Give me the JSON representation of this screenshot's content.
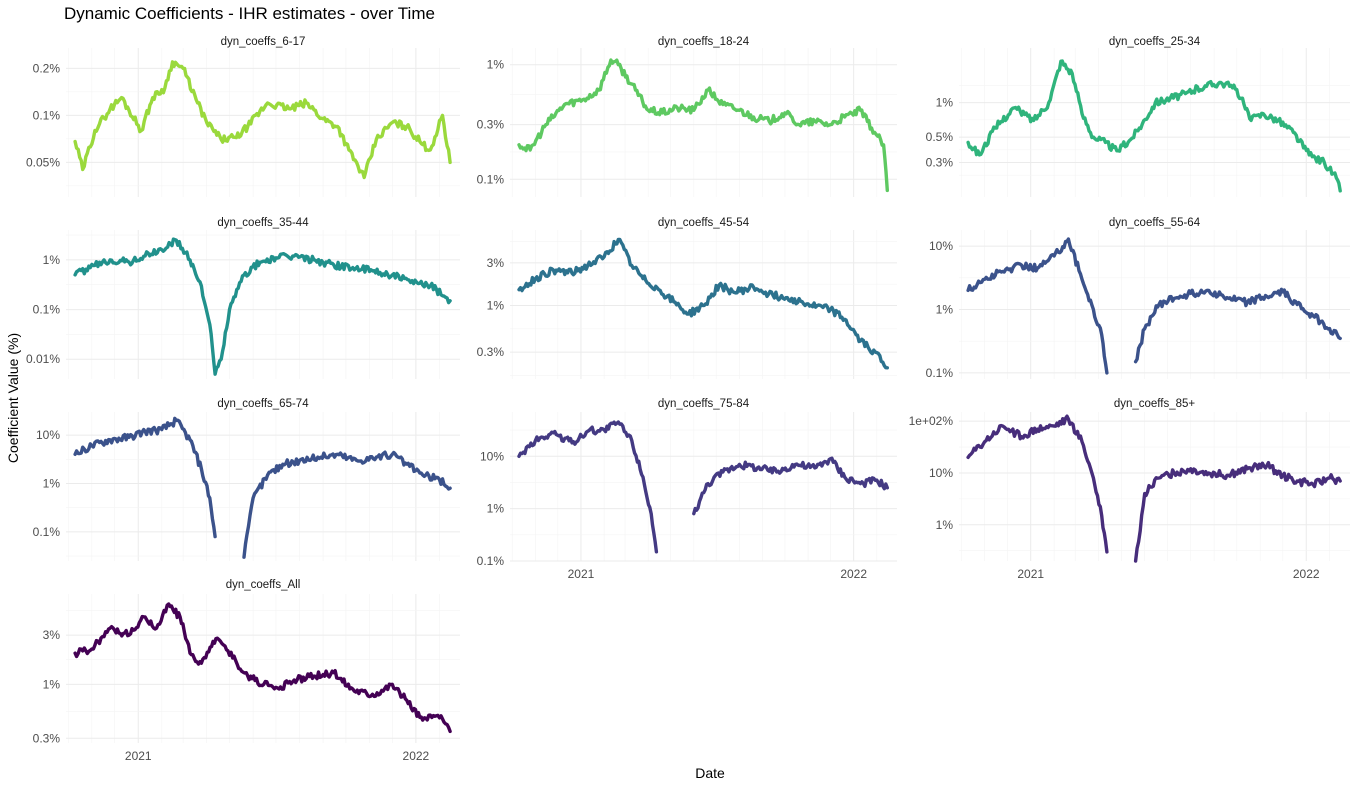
{
  "chart_data": {
    "type": "line",
    "title": "Dynamic Coefficients - IHR estimates - over Time",
    "xlabel": "Date",
    "ylabel": "Coefficient Value (%)",
    "x_ticks": [
      "2021",
      "2022"
    ],
    "y_scale": "log10",
    "grid": true,
    "panels": [
      {
        "name": "dyn_coeffs_6-17",
        "color": "#9ad93c",
        "y_ticks": [
          "0.05%",
          "0.1%",
          "0.2%"
        ],
        "ylim": [
          0.03,
          0.27
        ],
        "x": [
          "2020-10-10",
          "2020-10-20",
          "2020-11-05",
          "2020-11-25",
          "2020-12-10",
          "2021-01-05",
          "2021-01-20",
          "2021-02-05",
          "2021-02-15",
          "2021-03-01",
          "2021-03-20",
          "2021-04-01",
          "2021-04-20",
          "2021-05-10",
          "2021-05-25",
          "2021-06-20",
          "2021-07-20",
          "2021-08-10",
          "2021-09-01",
          "2021-09-20",
          "2021-10-05",
          "2021-10-25",
          "2021-11-10",
          "2021-12-01",
          "2021-12-20",
          "2022-01-10",
          "2022-01-20",
          "2022-02-05",
          "2022-02-15"
        ],
        "values": [
          0.068,
          0.045,
          0.08,
          0.11,
          0.13,
          0.08,
          0.13,
          0.15,
          0.22,
          0.2,
          0.12,
          0.09,
          0.07,
          0.072,
          0.085,
          0.12,
          0.11,
          0.12,
          0.095,
          0.085,
          0.06,
          0.04,
          0.07,
          0.09,
          0.085,
          0.065,
          0.06,
          0.1,
          0.05
        ]
      },
      {
        "name": "dyn_coeffs_18-24",
        "color": "#5ec961",
        "y_ticks": [
          "0.1%",
          "0.3%",
          "1%"
        ],
        "ylim": [
          0.07,
          1.4
        ],
        "x": [
          "2020-10-10",
          "2020-10-25",
          "2020-11-15",
          "2020-12-10",
          "2021-01-05",
          "2021-01-25",
          "2021-02-10",
          "2021-02-20",
          "2021-03-15",
          "2021-04-01",
          "2021-04-20",
          "2021-05-10",
          "2021-06-01",
          "2021-06-20",
          "2021-07-10",
          "2021-08-01",
          "2021-08-20",
          "2021-09-10",
          "2021-10-01",
          "2021-10-20",
          "2021-11-10",
          "2021-12-01",
          "2021-12-20",
          "2022-01-10",
          "2022-01-25",
          "2022-02-10",
          "2022-02-15"
        ],
        "values": [
          0.2,
          0.18,
          0.3,
          0.45,
          0.5,
          0.6,
          1.1,
          1.0,
          0.6,
          0.4,
          0.38,
          0.42,
          0.4,
          0.6,
          0.45,
          0.4,
          0.35,
          0.32,
          0.38,
          0.3,
          0.32,
          0.3,
          0.35,
          0.4,
          0.28,
          0.2,
          0.08
        ]
      },
      {
        "name": "dyn_coeffs_25-34",
        "color": "#2fb47c",
        "y_ticks": [
          "0.3%",
          "0.5%",
          "1%"
        ],
        "ylim": [
          0.15,
          3.0
        ],
        "x": [
          "2020-10-10",
          "2020-10-25",
          "2020-11-15",
          "2020-12-10",
          "2021-01-05",
          "2021-01-25",
          "2021-02-10",
          "2021-02-25",
          "2021-03-10",
          "2021-03-25",
          "2021-04-10",
          "2021-04-25",
          "2021-05-10",
          "2021-05-25",
          "2021-06-15",
          "2021-07-05",
          "2021-07-25",
          "2021-08-20",
          "2021-09-10",
          "2021-10-01",
          "2021-10-20",
          "2021-11-05",
          "2021-11-25",
          "2021-12-15",
          "2022-01-05",
          "2022-01-25",
          "2022-02-10",
          "2022-02-15"
        ],
        "values": [
          0.45,
          0.35,
          0.6,
          0.9,
          0.7,
          1.0,
          2.3,
          1.8,
          0.8,
          0.5,
          0.45,
          0.38,
          0.45,
          0.6,
          1.0,
          1.1,
          1.2,
          1.4,
          1.5,
          1.3,
          0.7,
          0.8,
          0.7,
          0.55,
          0.35,
          0.3,
          0.22,
          0.17
        ]
      },
      {
        "name": "dyn_coeffs_35-44",
        "color": "#21918c",
        "y_ticks": [
          "0.01%",
          "0.1%",
          "1%"
        ],
        "ylim": [
          0.004,
          4.0
        ],
        "x": [
          "2020-10-10",
          "2020-10-30",
          "2020-11-25",
          "2020-12-20",
          "2021-01-10",
          "2021-02-01",
          "2021-02-20",
          "2021-03-10",
          "2021-03-25",
          "2021-04-05",
          "2021-04-12",
          "2021-04-20",
          "2021-05-01",
          "2021-05-20",
          "2021-06-10",
          "2021-07-01",
          "2021-07-25",
          "2021-08-20",
          "2021-09-15",
          "2021-10-10",
          "2021-11-05",
          "2021-12-01",
          "2021-12-25",
          "2022-01-20",
          "2022-02-15"
        ],
        "values": [
          0.5,
          0.7,
          1.0,
          0.9,
          1.2,
          1.6,
          2.5,
          1.0,
          0.3,
          0.05,
          0.005,
          0.01,
          0.1,
          0.5,
          0.9,
          1.1,
          1.2,
          1.0,
          0.8,
          0.7,
          0.6,
          0.5,
          0.35,
          0.3,
          0.15
        ]
      },
      {
        "name": "dyn_coeffs_45-54",
        "color": "#2c728e",
        "y_ticks": [
          "0.3%",
          "1%",
          "3%"
        ],
        "ylim": [
          0.15,
          7.0
        ],
        "x": [
          "2020-10-10",
          "2020-11-01",
          "2020-11-25",
          "2020-12-20",
          "2021-01-10",
          "2021-02-01",
          "2021-02-20",
          "2021-03-10",
          "2021-03-25",
          "2021-04-15",
          "2021-05-05",
          "2021-05-25",
          "2021-06-15",
          "2021-07-05",
          "2021-07-25",
          "2021-08-20",
          "2021-09-15",
          "2021-10-10",
          "2021-11-05",
          "2021-12-01",
          "2021-12-20",
          "2022-01-10",
          "2022-01-30",
          "2022-02-15"
        ],
        "values": [
          1.5,
          2.0,
          2.5,
          2.3,
          2.8,
          3.5,
          5.5,
          2.8,
          2.0,
          1.5,
          1.1,
          0.8,
          1.0,
          1.7,
          1.4,
          1.6,
          1.3,
          1.2,
          1.0,
          0.9,
          0.7,
          0.4,
          0.3,
          0.2
        ]
      },
      {
        "name": "dyn_coeffs_55-64",
        "color": "#3b528b",
        "y_ticks": [
          "0.1%",
          "1%",
          "10%"
        ],
        "ylim": [
          0.08,
          18
        ],
        "x": [
          "2020-10-10",
          "2020-11-01",
          "2020-11-25",
          "2020-12-20",
          "2021-01-10",
          "2021-02-01",
          "2021-02-20",
          "2021-03-10",
          "2021-03-25",
          "2021-04-05",
          "2021-04-12"
        ],
        "values": [
          2.0,
          3.0,
          4.0,
          5.0,
          4.5,
          7.0,
          13,
          3.0,
          1.0,
          0.4,
          0.1
        ],
        "x2": [
          "2021-05-20",
          "2021-06-01",
          "2021-06-20",
          "2021-07-10",
          "2021-08-01",
          "2021-08-25",
          "2021-09-20",
          "2021-10-15",
          "2021-11-10",
          "2021-12-01",
          "2021-12-20",
          "2022-01-10",
          "2022-02-01",
          "2022-02-15"
        ],
        "values2": [
          0.15,
          0.5,
          1.2,
          1.5,
          1.8,
          2.0,
          1.5,
          1.3,
          1.6,
          1.9,
          1.2,
          0.8,
          0.5,
          0.35
        ]
      },
      {
        "name": "dyn_coeffs_65-74",
        "color": "#3b528b",
        "y_ticks": [
          "0.1%",
          "1%",
          "10%"
        ],
        "ylim": [
          0.025,
          30
        ],
        "x": [
          "2020-10-10",
          "2020-11-01",
          "2020-11-25",
          "2020-12-20",
          "2021-01-10",
          "2021-02-01",
          "2021-02-20",
          "2021-03-10",
          "2021-03-25",
          "2021-04-05",
          "2021-04-12"
        ],
        "values": [
          4.0,
          6.0,
          8.0,
          9.0,
          12,
          13,
          20,
          8.0,
          2.0,
          0.5,
          0.08
        ],
        "x2": [
          "2021-05-20",
          "2021-06-01",
          "2021-06-20",
          "2021-07-10",
          "2021-08-01",
          "2021-08-25",
          "2021-09-20",
          "2021-10-15",
          "2021-11-10",
          "2021-12-01",
          "2021-12-20",
          "2022-01-10",
          "2022-02-01",
          "2022-02-15"
        ],
        "values2": [
          0.03,
          0.5,
          1.5,
          2.5,
          3.0,
          3.5,
          4.0,
          3.0,
          3.5,
          4.0,
          2.5,
          1.5,
          1.2,
          0.8
        ]
      },
      {
        "name": "dyn_coeffs_75-84",
        "color": "#443a83",
        "y_ticks": [
          "0.1%",
          "1%",
          "10%"
        ],
        "ylim": [
          0.1,
          70
        ],
        "x": [
          "2020-10-10",
          "2020-11-01",
          "2020-11-25",
          "2020-12-20",
          "2021-01-10",
          "2021-02-01",
          "2021-02-20",
          "2021-03-10",
          "2021-03-25",
          "2021-04-05",
          "2021-04-12"
        ],
        "values": [
          10,
          20,
          28,
          18,
          30,
          32,
          45,
          20,
          4.0,
          0.8,
          0.15
        ],
        "x2": [
          "2021-06-01",
          "2021-06-20",
          "2021-07-10",
          "2021-08-01",
          "2021-08-25",
          "2021-09-20",
          "2021-10-15",
          "2021-11-10",
          "2021-12-01",
          "2021-12-20",
          "2022-01-10",
          "2022-02-01",
          "2022-02-15"
        ],
        "values2": [
          0.8,
          3.0,
          5.0,
          7.0,
          6.0,
          5.0,
          7.0,
          6.0,
          9.0,
          4.0,
          3.0,
          3.5,
          2.5
        ]
      },
      {
        "name": "dyn_coeffs_85+",
        "color": "#472d7b",
        "y_ticks": [
          "1%",
          "10%",
          "1e+02%"
        ],
        "ylim": [
          0.2,
          150
        ],
        "x": [
          "2020-10-10",
          "2020-11-01",
          "2020-11-25",
          "2020-12-20",
          "2021-01-10",
          "2021-02-01",
          "2021-02-20",
          "2021-03-10",
          "2021-03-25",
          "2021-04-05",
          "2021-04-12"
        ],
        "values": [
          20,
          40,
          80,
          50,
          70,
          80,
          110,
          40,
          8.0,
          1.5,
          0.3
        ],
        "x2": [
          "2021-05-20",
          "2021-06-01",
          "2021-06-20",
          "2021-07-10",
          "2021-08-01",
          "2021-08-25",
          "2021-09-20",
          "2021-10-15",
          "2021-11-10",
          "2021-12-01",
          "2021-12-20",
          "2022-01-10",
          "2022-02-01",
          "2022-02-15"
        ],
        "values2": [
          0.2,
          4.0,
          8.0,
          10,
          12,
          10,
          9.0,
          12,
          14,
          9.0,
          7.0,
          6.0,
          8.0,
          7.0
        ]
      },
      {
        "name": "dyn_coeffs_All",
        "color": "#440154",
        "y_ticks": [
          "0.3%",
          "1%",
          "3%"
        ],
        "ylim": [
          0.27,
          7.5
        ],
        "x": [
          "2020-10-10",
          "2020-11-01",
          "2020-11-25",
          "2020-12-20",
          "2021-01-10",
          "2021-01-25",
          "2021-02-10",
          "2021-02-25",
          "2021-03-10",
          "2021-03-25",
          "2021-04-15",
          "2021-05-05",
          "2021-05-25",
          "2021-06-15",
          "2021-07-05",
          "2021-07-25",
          "2021-08-20",
          "2021-09-15",
          "2021-10-10",
          "2021-11-05",
          "2021-12-01",
          "2021-12-20",
          "2022-01-10",
          "2022-01-30",
          "2022-02-15"
        ],
        "values": [
          2.0,
          2.2,
          3.5,
          3.0,
          4.5,
          3.5,
          6.0,
          4.5,
          2.0,
          1.6,
          2.8,
          1.8,
          1.2,
          1.0,
          0.9,
          1.1,
          1.2,
          1.3,
          0.9,
          0.8,
          1.0,
          0.7,
          0.45,
          0.5,
          0.35
        ]
      }
    ]
  }
}
